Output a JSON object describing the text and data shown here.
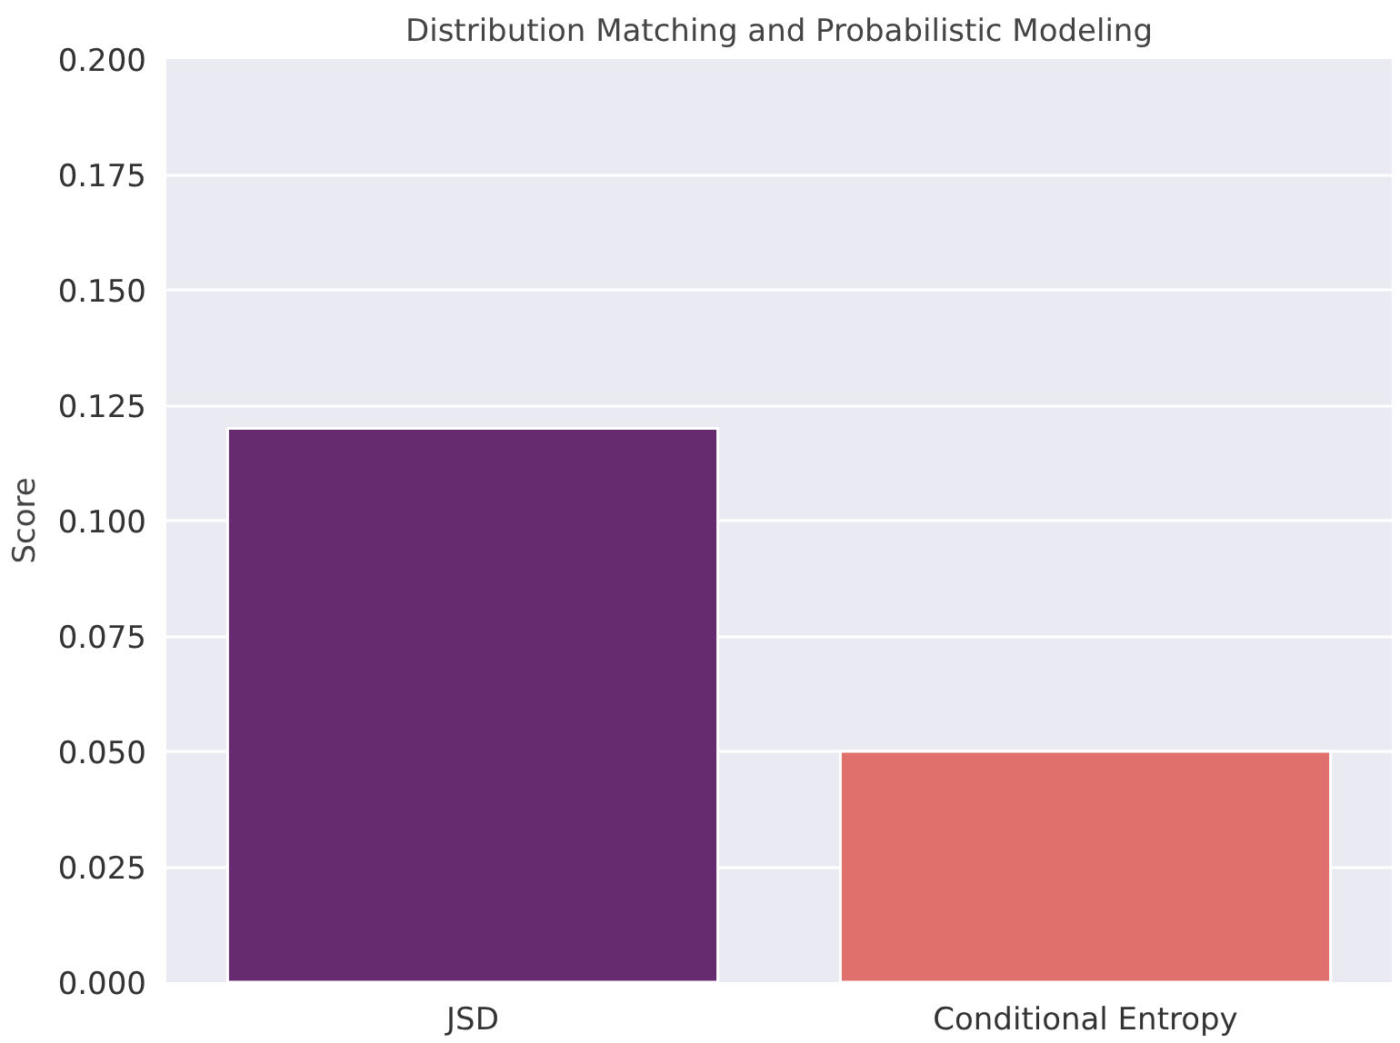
{
  "chart_data": {
    "type": "bar",
    "title": "Distribution Matching and Probabilistic Modeling",
    "ylabel": "Score",
    "categories": [
      "JSD",
      "Conditional Entropy"
    ],
    "values": [
      0.12,
      0.05
    ],
    "colors": [
      "#662a6f",
      "#e0706c"
    ],
    "ylim": [
      0,
      0.2
    ],
    "yticks": [
      {
        "value": 0,
        "label": "0.000"
      },
      {
        "value": 0.025,
        "label": "0.025"
      },
      {
        "value": 0.05,
        "label": "0.050"
      },
      {
        "value": 0.075,
        "label": "0.075"
      },
      {
        "value": 0.1,
        "label": "0.100"
      },
      {
        "value": 0.125,
        "label": "0.125"
      },
      {
        "value": 0.15,
        "label": "0.150"
      },
      {
        "value": 0.175,
        "label": "0.175"
      },
      {
        "value": 0.2,
        "label": "0.200"
      }
    ],
    "grid": "y"
  }
}
